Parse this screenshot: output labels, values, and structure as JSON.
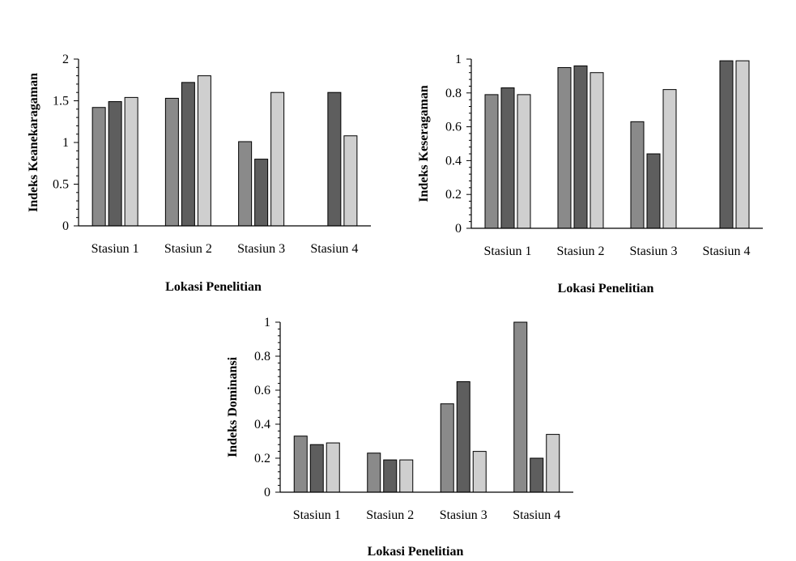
{
  "colors": {
    "series_1": "#8a8a8a",
    "series_2": "#5e5e5e",
    "series_3": "#cfcfcf",
    "bar_stroke": "#000000",
    "axis": "#000000",
    "text": "#000000"
  },
  "chart_data": [
    {
      "type": "bar",
      "title": "",
      "xlabel": "Lokasi Penelitian",
      "ylabel": "Indeks Keanekaragaman",
      "categories": [
        "Stasiun 1",
        "Stasiun 2",
        "Stasiun 3",
        "Stasiun 4"
      ],
      "series": [
        {
          "values": [
            1.42,
            1.53,
            1.01,
            null
          ]
        },
        {
          "values": [
            1.49,
            1.72,
            0.8,
            1.6
          ]
        },
        {
          "values": [
            1.54,
            1.8,
            1.6,
            1.08
          ]
        }
      ],
      "ylim": [
        0,
        2
      ],
      "yticks": [
        0,
        0.5,
        1,
        1.5,
        2
      ],
      "ytick_labels": [
        "0",
        "0.5",
        "1",
        "1.5",
        "2"
      ],
      "grid": false,
      "legend": "none"
    },
    {
      "type": "bar",
      "title": "",
      "xlabel": "Lokasi Penelitian",
      "ylabel": "Indeks Keseragaman",
      "categories": [
        "Stasiun 1",
        "Stasiun 2",
        "Stasiun 3",
        "Stasiun 4"
      ],
      "series": [
        {
          "values": [
            0.79,
            0.95,
            0.63,
            null
          ]
        },
        {
          "values": [
            0.83,
            0.96,
            0.44,
            0.99
          ]
        },
        {
          "values": [
            0.79,
            0.92,
            0.82,
            0.99
          ]
        }
      ],
      "ylim": [
        0,
        1
      ],
      "yticks": [
        0,
        0.2,
        0.4,
        0.6,
        0.8,
        1
      ],
      "ytick_labels": [
        "0",
        "0.2",
        "0.4",
        "0.6",
        "0.8",
        "1"
      ],
      "grid": false,
      "legend": "none"
    },
    {
      "type": "bar",
      "title": "",
      "xlabel": "Lokasi Penelitian",
      "ylabel": "Indeks Dominansi",
      "categories": [
        "Stasiun 1",
        "Stasiun 2",
        "Stasiun 3",
        "Stasiun 4"
      ],
      "series": [
        {
          "values": [
            0.33,
            0.23,
            0.52,
            1.0
          ]
        },
        {
          "values": [
            0.28,
            0.19,
            0.65,
            0.2
          ]
        },
        {
          "values": [
            0.29,
            0.19,
            0.24,
            0.34
          ]
        }
      ],
      "ylim": [
        0,
        1
      ],
      "yticks": [
        0,
        0.2,
        0.4,
        0.6,
        0.8,
        1
      ],
      "ytick_labels": [
        "0",
        "0.2",
        "0.4",
        "0.6",
        "0.8",
        "1"
      ],
      "grid": false,
      "legend": "none"
    }
  ]
}
